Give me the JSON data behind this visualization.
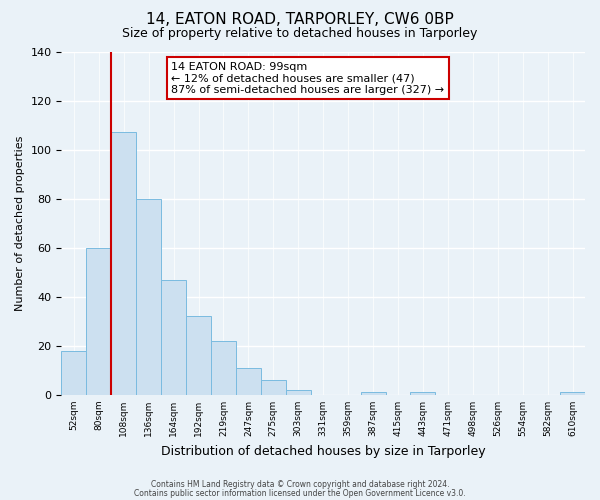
{
  "title": "14, EATON ROAD, TARPORLEY, CW6 0BP",
  "subtitle": "Size of property relative to detached houses in Tarporley",
  "xlabel": "Distribution of detached houses by size in Tarporley",
  "ylabel": "Number of detached properties",
  "bin_labels": [
    "52sqm",
    "80sqm",
    "108sqm",
    "136sqm",
    "164sqm",
    "192sqm",
    "219sqm",
    "247sqm",
    "275sqm",
    "303sqm",
    "331sqm",
    "359sqm",
    "387sqm",
    "415sqm",
    "443sqm",
    "471sqm",
    "498sqm",
    "526sqm",
    "554sqm",
    "582sqm",
    "610sqm"
  ],
  "bar_heights": [
    18,
    60,
    107,
    80,
    47,
    32,
    22,
    11,
    6,
    2,
    0,
    0,
    1,
    0,
    1,
    0,
    0,
    0,
    0,
    0,
    1
  ],
  "bar_color": "#cce0f0",
  "bar_edge_color": "#7abbe0",
  "vline_x_index": 2,
  "vline_color": "#cc0000",
  "ylim": [
    0,
    140
  ],
  "yticks": [
    0,
    20,
    40,
    60,
    80,
    100,
    120,
    140
  ],
  "annotation_title": "14 EATON ROAD: 99sqm",
  "annotation_line1": "← 12% of detached houses are smaller (47)",
  "annotation_line2": "87% of semi-detached houses are larger (327) →",
  "annotation_box_facecolor": "#ffffff",
  "annotation_box_edgecolor": "#cc0000",
  "footer_line1": "Contains HM Land Registry data © Crown copyright and database right 2024.",
  "footer_line2": "Contains public sector information licensed under the Open Government Licence v3.0.",
  "background_color": "#eaf2f8",
  "grid_color": "#ffffff",
  "title_fontsize": 11,
  "subtitle_fontsize": 9,
  "ylabel_fontsize": 8,
  "xlabel_fontsize": 9
}
